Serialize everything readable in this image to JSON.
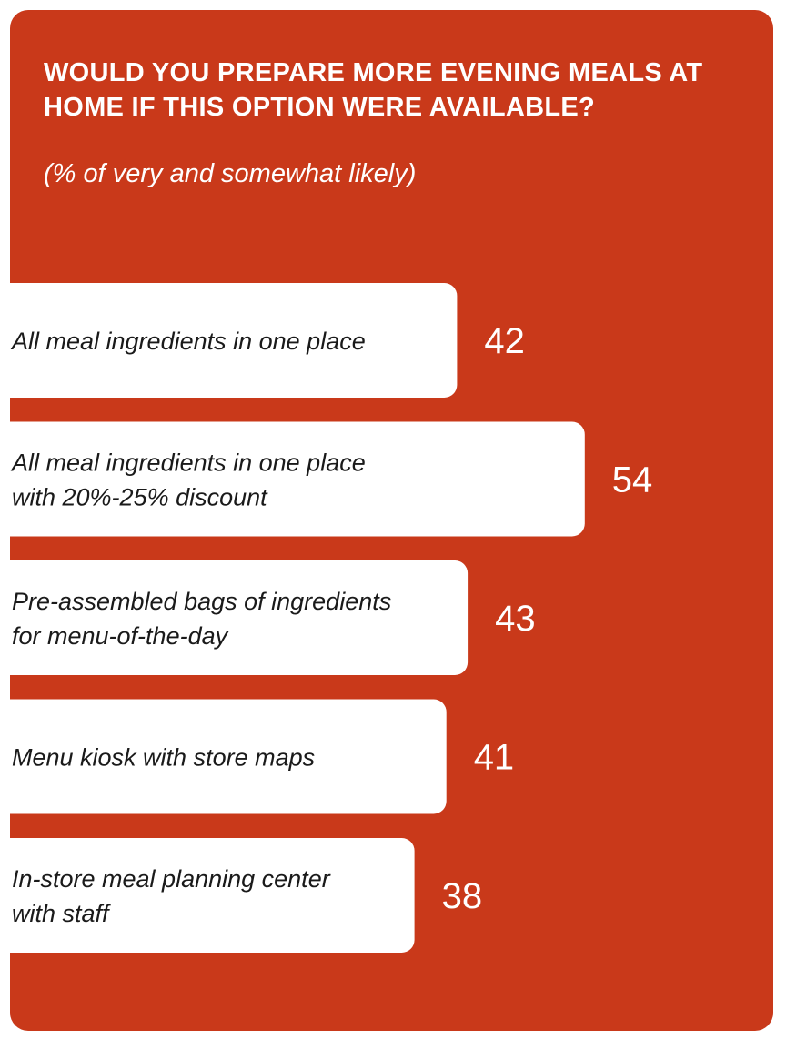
{
  "colors": {
    "background": "#C9391A",
    "bar": "#ffffff",
    "label_text": "#1a1a1a",
    "value_text": "#ffffff"
  },
  "chart_data": {
    "type": "bar",
    "orientation": "horizontal",
    "title": "WOULD YOU PREPARE MORE EVENING MEALS AT HOME IF THIS OPTION WERE AVAILABLE?",
    "subtitle": "(% of very and somewhat likely)",
    "categories": [
      [
        "All meal ingredients in one place"
      ],
      [
        "All meal ingredients in one place",
        "with 20%-25% discount"
      ],
      [
        "Pre-assembled bags of ingredients",
        "for menu-of-the-day"
      ],
      [
        "Menu kiosk with store maps"
      ],
      [
        "In-store meal planning center",
        "with staff"
      ]
    ],
    "values": [
      42,
      54,
      43,
      41,
      38
    ],
    "value_labels": [
      "42",
      "54",
      "43",
      "41",
      "38"
    ],
    "grid": false,
    "legend": "none"
  }
}
